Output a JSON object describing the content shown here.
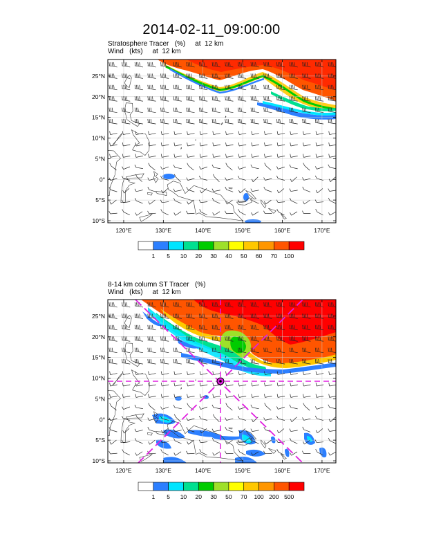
{
  "title": "2014-02-11_09:00:00",
  "panels": [
    {
      "subtitle_line1": "Stratosphere Tracer   (%)     at  12 km",
      "subtitle_line2": "Wind   (kts)     at  12 km",
      "lat_labels": [
        "25°N",
        "20°N",
        "15°N",
        "10°N",
        "5°N",
        "0°",
        "5°S",
        "10°S"
      ],
      "lon_labels": [
        "120°E",
        "130°E",
        "140°E",
        "150°E",
        "160°E",
        "170°E"
      ],
      "colorbar_labels": [
        "1",
        "5",
        "10",
        "20",
        "30",
        "40",
        "50",
        "60",
        "70",
        "100"
      ],
      "colors": [
        "#ffffff",
        "#2c7fff",
        "#00e5ff",
        "#00e090",
        "#00cc00",
        "#9ee02a",
        "#ffff00",
        "#ffc800",
        "#ff9600",
        "#ff5500",
        "#ff0000"
      ]
    },
    {
      "subtitle_line1": "8-14 km column ST Tracer   (%)",
      "subtitle_line2": "Wind   (kts)     at  12 km",
      "lat_labels": [
        "25°N",
        "20°N",
        "15°N",
        "10°N",
        "5°N",
        "0°",
        "5°S",
        "10°S"
      ],
      "lon_labels": [
        "120°E",
        "130°E",
        "140°E",
        "150°E",
        "160°E",
        "170°E"
      ],
      "colorbar_labels": [
        "1",
        "5",
        "10",
        "20",
        "30",
        "50",
        "70",
        "100",
        "200",
        "500"
      ],
      "colors": [
        "#ffffff",
        "#2c7fff",
        "#00e5ff",
        "#00e090",
        "#00cc00",
        "#9ee02a",
        "#ffff00",
        "#ffc800",
        "#ff9600",
        "#ff5500",
        "#ff0000"
      ]
    }
  ],
  "map_extent": {
    "lon": [
      116,
      173.5
    ],
    "lat": [
      -10.5,
      29
    ]
  },
  "cross_section_marker": {
    "lon": 145,
    "lat": 10
  }
}
